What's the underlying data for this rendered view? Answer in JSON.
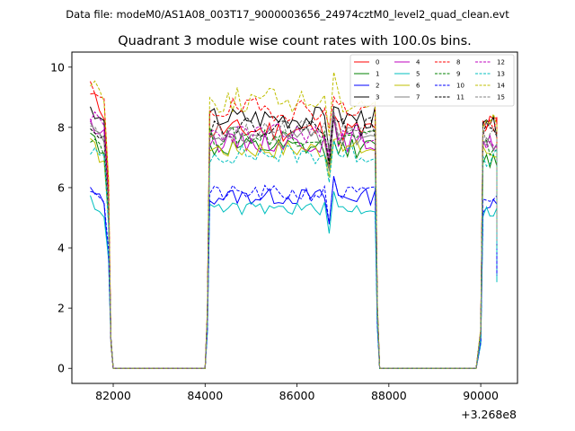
{
  "header": {
    "file_label": "Data file: modeM0/AS1A08_003T17_9000003656_24974cztM0_level2_quad_clean.evt"
  },
  "chart_data": {
    "type": "line",
    "title": "Quadrant 3 module wise count rates with 100.0s bins.",
    "xlabel": "",
    "ylabel": "",
    "x_offset_text": "+3.268e8",
    "xlim": [
      81100,
      90800
    ],
    "ylim": [
      -0.5,
      10.5
    ],
    "x_ticks": [
      82000,
      84000,
      86000,
      88000,
      90000
    ],
    "x_tick_labels": [
      "82000",
      "84000",
      "86000",
      "88000",
      "90000"
    ],
    "y_ticks": [
      0,
      2,
      4,
      6,
      8,
      10
    ],
    "y_tick_labels": [
      "0",
      "2",
      "4",
      "6",
      "8",
      "10"
    ],
    "grid": false,
    "legend_position": "top-right",
    "segments": [
      {
        "start": 81500,
        "end": 81900
      },
      {
        "start": 84100,
        "end": 87700
      },
      {
        "start": 90000,
        "end": 90350
      }
    ],
    "gap_ranges": [
      [
        82000,
        84000
      ],
      [
        87800,
        90000
      ]
    ],
    "transition_points": [
      81950,
      82000,
      84000,
      84050,
      87750,
      87800,
      90000
    ],
    "series": [
      {
        "name": "0",
        "color": "#ff0000",
        "dash": "solid",
        "level": 7.9,
        "start": 9.0,
        "end": 8.1,
        "noise": 0.35,
        "seed": 11
      },
      {
        "name": "1",
        "color": "#008000",
        "dash": "solid",
        "level": 7.3,
        "start": 7.7,
        "end": 6.9,
        "noise": 0.3,
        "seed": 12
      },
      {
        "name": "2",
        "color": "#0000ff",
        "dash": "solid",
        "level": 5.7,
        "start": 5.9,
        "end": 5.4,
        "noise": 0.25,
        "seed": 13
      },
      {
        "name": "3",
        "color": "#000000",
        "dash": "solid",
        "level": 8.3,
        "start": 8.5,
        "end": 8.0,
        "noise": 0.35,
        "seed": 14
      },
      {
        "name": "4",
        "color": "#bf00bf",
        "dash": "solid",
        "level": 7.5,
        "start": 8.1,
        "end": 7.5,
        "noise": 0.3,
        "seed": 15
      },
      {
        "name": "5",
        "color": "#00bfbf",
        "dash": "solid",
        "level": 5.3,
        "start": 5.6,
        "end": 5.2,
        "noise": 0.2,
        "seed": 16
      },
      {
        "name": "6",
        "color": "#bfbf00",
        "dash": "solid",
        "level": 7.3,
        "start": 7.4,
        "end": 7.2,
        "noise": 0.3,
        "seed": 17
      },
      {
        "name": "7",
        "color": "#808080",
        "dash": "solid",
        "level": 7.7,
        "start": 7.9,
        "end": 7.4,
        "noise": 0.3,
        "seed": 18
      },
      {
        "name": "8",
        "color": "#ff0000",
        "dash": "dashed",
        "level": 8.6,
        "start": 9.2,
        "end": 8.0,
        "noise": 0.35,
        "seed": 19
      },
      {
        "name": "9",
        "color": "#008000",
        "dash": "dashed",
        "level": 7.7,
        "start": 7.8,
        "end": 7.3,
        "noise": 0.3,
        "seed": 20
      },
      {
        "name": "10",
        "color": "#0000ff",
        "dash": "dashed",
        "level": 5.8,
        "start": 6.1,
        "end": 5.6,
        "noise": 0.25,
        "seed": 21
      },
      {
        "name": "11",
        "color": "#000000",
        "dash": "dashed",
        "level": 8.0,
        "start": 8.2,
        "end": 7.9,
        "noise": 0.3,
        "seed": 22
      },
      {
        "name": "12",
        "color": "#bf00bf",
        "dash": "dashed",
        "level": 7.8,
        "start": 8.4,
        "end": 7.3,
        "noise": 0.3,
        "seed": 23
      },
      {
        "name": "13",
        "color": "#00bfbf",
        "dash": "dashed",
        "level": 7.1,
        "start": 7.3,
        "end": 7.0,
        "noise": 0.3,
        "seed": 24
      },
      {
        "name": "14",
        "color": "#bfbf00",
        "dash": "dashed",
        "level": 8.9,
        "start": 9.6,
        "end": 8.2,
        "noise": 0.4,
        "seed": 25
      },
      {
        "name": "15",
        "color": "#808080",
        "dash": "dashed",
        "level": 7.9,
        "start": 8.2,
        "end": 7.7,
        "noise": 0.3,
        "seed": 26
      }
    ]
  }
}
